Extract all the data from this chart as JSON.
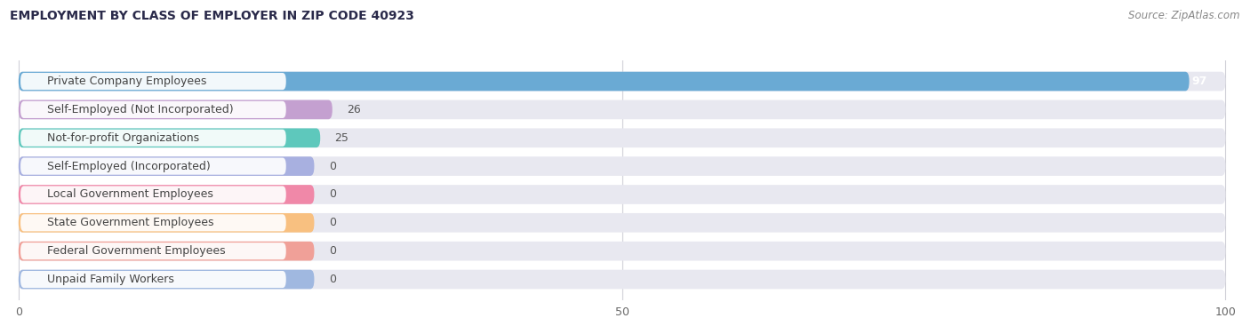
{
  "title": "EMPLOYMENT BY CLASS OF EMPLOYER IN ZIP CODE 40923",
  "source": "Source: ZipAtlas.com",
  "categories": [
    "Private Company Employees",
    "Self-Employed (Not Incorporated)",
    "Not-for-profit Organizations",
    "Self-Employed (Incorporated)",
    "Local Government Employees",
    "State Government Employees",
    "Federal Government Employees",
    "Unpaid Family Workers"
  ],
  "values": [
    97,
    26,
    25,
    0,
    0,
    0,
    0,
    0
  ],
  "bar_colors": [
    "#6aaad4",
    "#c4a0d0",
    "#5ec8bc",
    "#a8b0e0",
    "#f088a8",
    "#f8c080",
    "#f0a098",
    "#a0b8e0"
  ],
  "bar_bg_color": "#e8e8f0",
  "label_bg_color": "#ffffff",
  "xlim": [
    0,
    100
  ],
  "xticks": [
    0,
    50,
    100
  ],
  "title_fontsize": 10,
  "source_fontsize": 8.5,
  "label_fontsize": 9,
  "value_fontsize": 9,
  "background_color": "#ffffff",
  "grid_color": "#d0d0d8"
}
